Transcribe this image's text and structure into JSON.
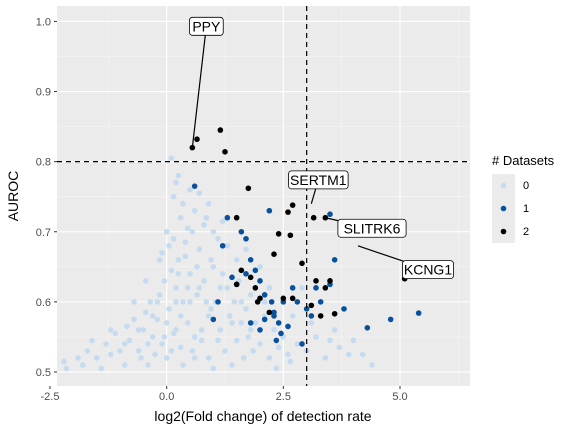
{
  "chart_data": {
    "type": "scatter",
    "xlabel": "log2(Fold change) of detection rate",
    "ylabel": "AUROC",
    "xlim": [
      -2.35,
      6.5
    ],
    "ylim": [
      0.48,
      1.022
    ],
    "x_ticks": [
      {
        "value": -2.5,
        "label": "-2.5"
      },
      {
        "value": 0.0,
        "label": "0.0"
      },
      {
        "value": 2.5,
        "label": "2.5"
      },
      {
        "value": 5.0,
        "label": "5.0"
      }
    ],
    "y_ticks": [
      {
        "value": 0.5,
        "label": "0.5"
      },
      {
        "value": 0.6,
        "label": "0.6"
      },
      {
        "value": 0.7,
        "label": "0.7"
      },
      {
        "value": 0.8,
        "label": "0.8"
      },
      {
        "value": 0.9,
        "label": "0.9"
      },
      {
        "value": 1.0,
        "label": "1.0"
      }
    ],
    "grid": true,
    "threshold_lines": {
      "x": 3.0,
      "y": 0.8
    },
    "legend": {
      "title": "# Datasets",
      "position": "right",
      "entries": [
        {
          "label": "0",
          "color": "#c6dbef"
        },
        {
          "label": "1",
          "color": "#08519c"
        },
        {
          "label": "2",
          "color": "#000000"
        }
      ]
    },
    "series": [
      {
        "name": "0",
        "color": "#c6dbef",
        "points": [
          [
            -2.2,
            0.515
          ],
          [
            -2.15,
            0.505
          ],
          [
            -1.8,
            0.51
          ],
          [
            -1.7,
            0.53
          ],
          [
            -1.6,
            0.545
          ],
          [
            -1.5,
            0.52
          ],
          [
            -1.4,
            0.505
          ],
          [
            -1.3,
            0.54
          ],
          [
            -1.2,
            0.525
          ],
          [
            -1.1,
            0.555
          ],
          [
            -1.0,
            0.53
          ],
          [
            -0.9,
            0.51
          ],
          [
            -0.85,
            0.565
          ],
          [
            -0.8,
            0.545
          ],
          [
            -0.7,
            0.575
          ],
          [
            -0.6,
            0.53
          ],
          [
            -0.55,
            0.52
          ],
          [
            -0.5,
            0.56
          ],
          [
            -0.45,
            0.585
          ],
          [
            -0.4,
            0.54
          ],
          [
            -0.35,
            0.6
          ],
          [
            -0.3,
            0.55
          ],
          [
            -0.25,
            0.525
          ],
          [
            -0.2,
            0.575
          ],
          [
            -0.15,
            0.61
          ],
          [
            -0.1,
            0.54
          ],
          [
            -0.05,
            0.63
          ],
          [
            0.0,
            0.52
          ],
          [
            0.05,
            0.59
          ],
          [
            0.1,
            0.645
          ],
          [
            0.15,
            0.555
          ],
          [
            0.2,
            0.62
          ],
          [
            0.25,
            0.66
          ],
          [
            0.3,
            0.535
          ],
          [
            0.35,
            0.6
          ],
          [
            0.4,
            0.685
          ],
          [
            0.45,
            0.57
          ],
          [
            0.5,
            0.64
          ],
          [
            0.55,
            0.7
          ],
          [
            0.6,
            0.52
          ],
          [
            0.65,
            0.61
          ],
          [
            0.7,
            0.675
          ],
          [
            0.75,
            0.545
          ],
          [
            0.8,
            0.63
          ],
          [
            0.85,
            0.72
          ],
          [
            0.9,
            0.58
          ],
          [
            0.95,
            0.66
          ],
          [
            1.0,
            0.505
          ],
          [
            1.05,
            0.6
          ],
          [
            1.1,
            0.69
          ],
          [
            1.15,
            0.56
          ],
          [
            1.2,
            0.64
          ],
          [
            1.25,
            0.53
          ],
          [
            1.3,
            0.62
          ],
          [
            1.35,
            0.58
          ],
          [
            1.4,
            0.51
          ],
          [
            1.45,
            0.6
          ],
          [
            1.5,
            0.545
          ],
          [
            1.55,
            0.63
          ],
          [
            1.6,
            0.57
          ],
          [
            1.65,
            0.52
          ],
          [
            1.7,
            0.59
          ],
          [
            1.75,
            0.55
          ],
          [
            1.8,
            0.61
          ],
          [
            1.85,
            0.53
          ],
          [
            1.9,
            0.57
          ],
          [
            2.0,
            0.54
          ],
          [
            2.1,
            0.58
          ],
          [
            2.2,
            0.52
          ],
          [
            2.3,
            0.56
          ],
          [
            2.4,
            0.535
          ],
          [
            2.5,
            0.55
          ],
          [
            2.6,
            0.525
          ],
          [
            2.8,
            0.54
          ],
          [
            3.0,
            0.53
          ],
          [
            3.2,
            0.55
          ],
          [
            3.4,
            0.52
          ],
          [
            3.7,
            0.535
          ],
          [
            4.0,
            0.545
          ],
          [
            4.4,
            0.51
          ],
          [
            0.1,
            0.805
          ],
          [
            0.2,
            0.77
          ],
          [
            0.15,
            0.75
          ],
          [
            0.25,
            0.78
          ],
          [
            0.35,
            0.74
          ],
          [
            0.5,
            0.76
          ],
          [
            0.6,
            0.73
          ],
          [
            0.8,
            0.71
          ],
          [
            1.0,
            0.7
          ],
          [
            0.3,
            0.72
          ],
          [
            0.45,
            0.705
          ],
          [
            0.7,
            0.755
          ],
          [
            0.9,
            0.74
          ],
          [
            0.05,
            0.68
          ],
          [
            -0.1,
            0.67
          ],
          [
            0.0,
            0.7
          ],
          [
            0.4,
            0.665
          ],
          [
            0.15,
            0.69
          ],
          [
            1.3,
            0.68
          ],
          [
            1.5,
            0.66
          ],
          [
            1.2,
            0.715
          ],
          [
            1.7,
            0.675
          ],
          [
            2.0,
            0.65
          ],
          [
            2.2,
            0.62
          ],
          [
            2.5,
            0.6
          ],
          [
            2.7,
            0.58
          ],
          [
            3.1,
            0.57
          ],
          [
            3.3,
            0.6
          ],
          [
            3.6,
            0.56
          ],
          [
            2.9,
            0.62
          ],
          [
            -0.3,
            0.58
          ],
          [
            -0.6,
            0.56
          ],
          [
            -0.9,
            0.54
          ],
          [
            -1.2,
            0.56
          ],
          [
            -1.9,
            0.52
          ],
          [
            0.6,
            0.55
          ],
          [
            0.9,
            0.52
          ],
          [
            1.1,
            0.545
          ],
          [
            1.4,
            0.57
          ],
          [
            1.8,
            0.56
          ],
          [
            0.2,
            0.56
          ],
          [
            0.0,
            0.57
          ],
          [
            -0.2,
            0.6
          ],
          [
            0.3,
            0.58
          ],
          [
            0.5,
            0.6
          ],
          [
            0.7,
            0.62
          ],
          [
            -0.05,
            0.55
          ],
          [
            0.1,
            0.53
          ],
          [
            0.35,
            0.51
          ],
          [
            0.55,
            0.53
          ],
          [
            0.75,
            0.56
          ],
          [
            0.95,
            0.59
          ],
          [
            1.15,
            0.62
          ],
          [
            0.65,
            0.65
          ],
          [
            0.85,
            0.6
          ],
          [
            -0.45,
            0.63
          ],
          [
            -0.7,
            0.6
          ],
          [
            -0.15,
            0.66
          ],
          [
            0.25,
            0.64
          ],
          [
            0.45,
            0.62
          ],
          [
            2.35,
            0.505
          ],
          [
            2.65,
            0.515
          ],
          [
            3.5,
            0.545
          ],
          [
            3.9,
            0.525
          ],
          [
            4.2,
            0.525
          ],
          [
            2.1,
            0.6
          ],
          [
            1.6,
            0.6
          ],
          [
            1.0,
            0.65
          ],
          [
            0.2,
            0.6
          ],
          [
            -0.4,
            0.51
          ]
        ]
      },
      {
        "name": "1",
        "color": "#08519c",
        "points": [
          [
            0.6,
            0.765
          ],
          [
            1.3,
            0.72
          ],
          [
            1.2,
            0.68
          ],
          [
            1.4,
            0.635
          ],
          [
            1.1,
            0.6
          ],
          [
            1.6,
            0.7
          ],
          [
            1.7,
            0.69
          ],
          [
            1.8,
            0.66
          ],
          [
            2.0,
            0.63
          ],
          [
            2.1,
            0.61
          ],
          [
            2.2,
            0.73
          ],
          [
            2.25,
            0.6
          ],
          [
            2.3,
            0.58
          ],
          [
            2.4,
            0.57
          ],
          [
            2.5,
            0.6
          ],
          [
            2.7,
            0.62
          ],
          [
            2.8,
            0.6
          ],
          [
            3.0,
            0.59
          ],
          [
            3.1,
            0.58
          ],
          [
            3.3,
            0.6
          ],
          [
            3.5,
            0.625
          ],
          [
            3.5,
            0.725
          ],
          [
            3.6,
            0.66
          ],
          [
            1.9,
            0.645
          ],
          [
            2.0,
            0.56
          ],
          [
            2.1,
            0.575
          ],
          [
            2.3,
            0.585
          ],
          [
            1.7,
            0.64
          ],
          [
            1.5,
            0.625
          ],
          [
            1.0,
            0.575
          ],
          [
            3.2,
            0.62
          ],
          [
            3.8,
            0.59
          ],
          [
            4.3,
            0.563
          ],
          [
            4.8,
            0.575
          ],
          [
            5.4,
            0.584
          ],
          [
            2.6,
            0.565
          ],
          [
            2.35,
            0.545
          ],
          [
            1.8,
            0.57
          ],
          [
            2.45,
            0.555
          ],
          [
            2.9,
            0.54
          ]
        ]
      },
      {
        "name": "2",
        "color": "#000000",
        "points": [
          [
            0.65,
            0.832
          ],
          [
            1.15,
            0.845
          ],
          [
            0.55,
            0.82
          ],
          [
            1.25,
            0.814
          ],
          [
            1.75,
            0.762
          ],
          [
            2.6,
            0.728
          ],
          [
            2.7,
            0.738
          ],
          [
            3.15,
            0.72
          ],
          [
            3.4,
            0.72
          ],
          [
            1.5,
            0.72
          ],
          [
            2.4,
            0.697
          ],
          [
            2.65,
            0.695
          ],
          [
            2.3,
            0.668
          ],
          [
            1.9,
            0.62
          ],
          [
            1.8,
            0.635
          ],
          [
            1.6,
            0.645
          ],
          [
            1.5,
            0.625
          ],
          [
            2.0,
            0.605
          ],
          [
            2.2,
            0.585
          ],
          [
            2.5,
            0.605
          ],
          [
            2.7,
            0.605
          ],
          [
            2.9,
            0.655
          ],
          [
            3.2,
            0.63
          ],
          [
            3.3,
            0.58
          ],
          [
            3.4,
            0.62
          ],
          [
            3.5,
            0.63
          ],
          [
            3.1,
            0.595
          ],
          [
            3.6,
            0.583
          ],
          [
            1.95,
            0.6
          ],
          [
            5.1,
            0.633
          ]
        ]
      }
    ],
    "annotations": [
      {
        "label": "PPY",
        "point": [
          0.55,
          0.82
        ],
        "label_at": [
          0.85,
          0.993
        ]
      },
      {
        "label": "SERTM1",
        "point": [
          3.1,
          0.74
        ],
        "label_at": [
          3.25,
          0.774
        ]
      },
      {
        "label": "SLITRK6",
        "point": [
          3.4,
          0.72
        ],
        "label_at": [
          4.4,
          0.705
        ]
      },
      {
        "label": "KCNG1",
        "point": [
          4.1,
          0.68
        ],
        "label_at": [
          5.6,
          0.646
        ]
      }
    ]
  }
}
